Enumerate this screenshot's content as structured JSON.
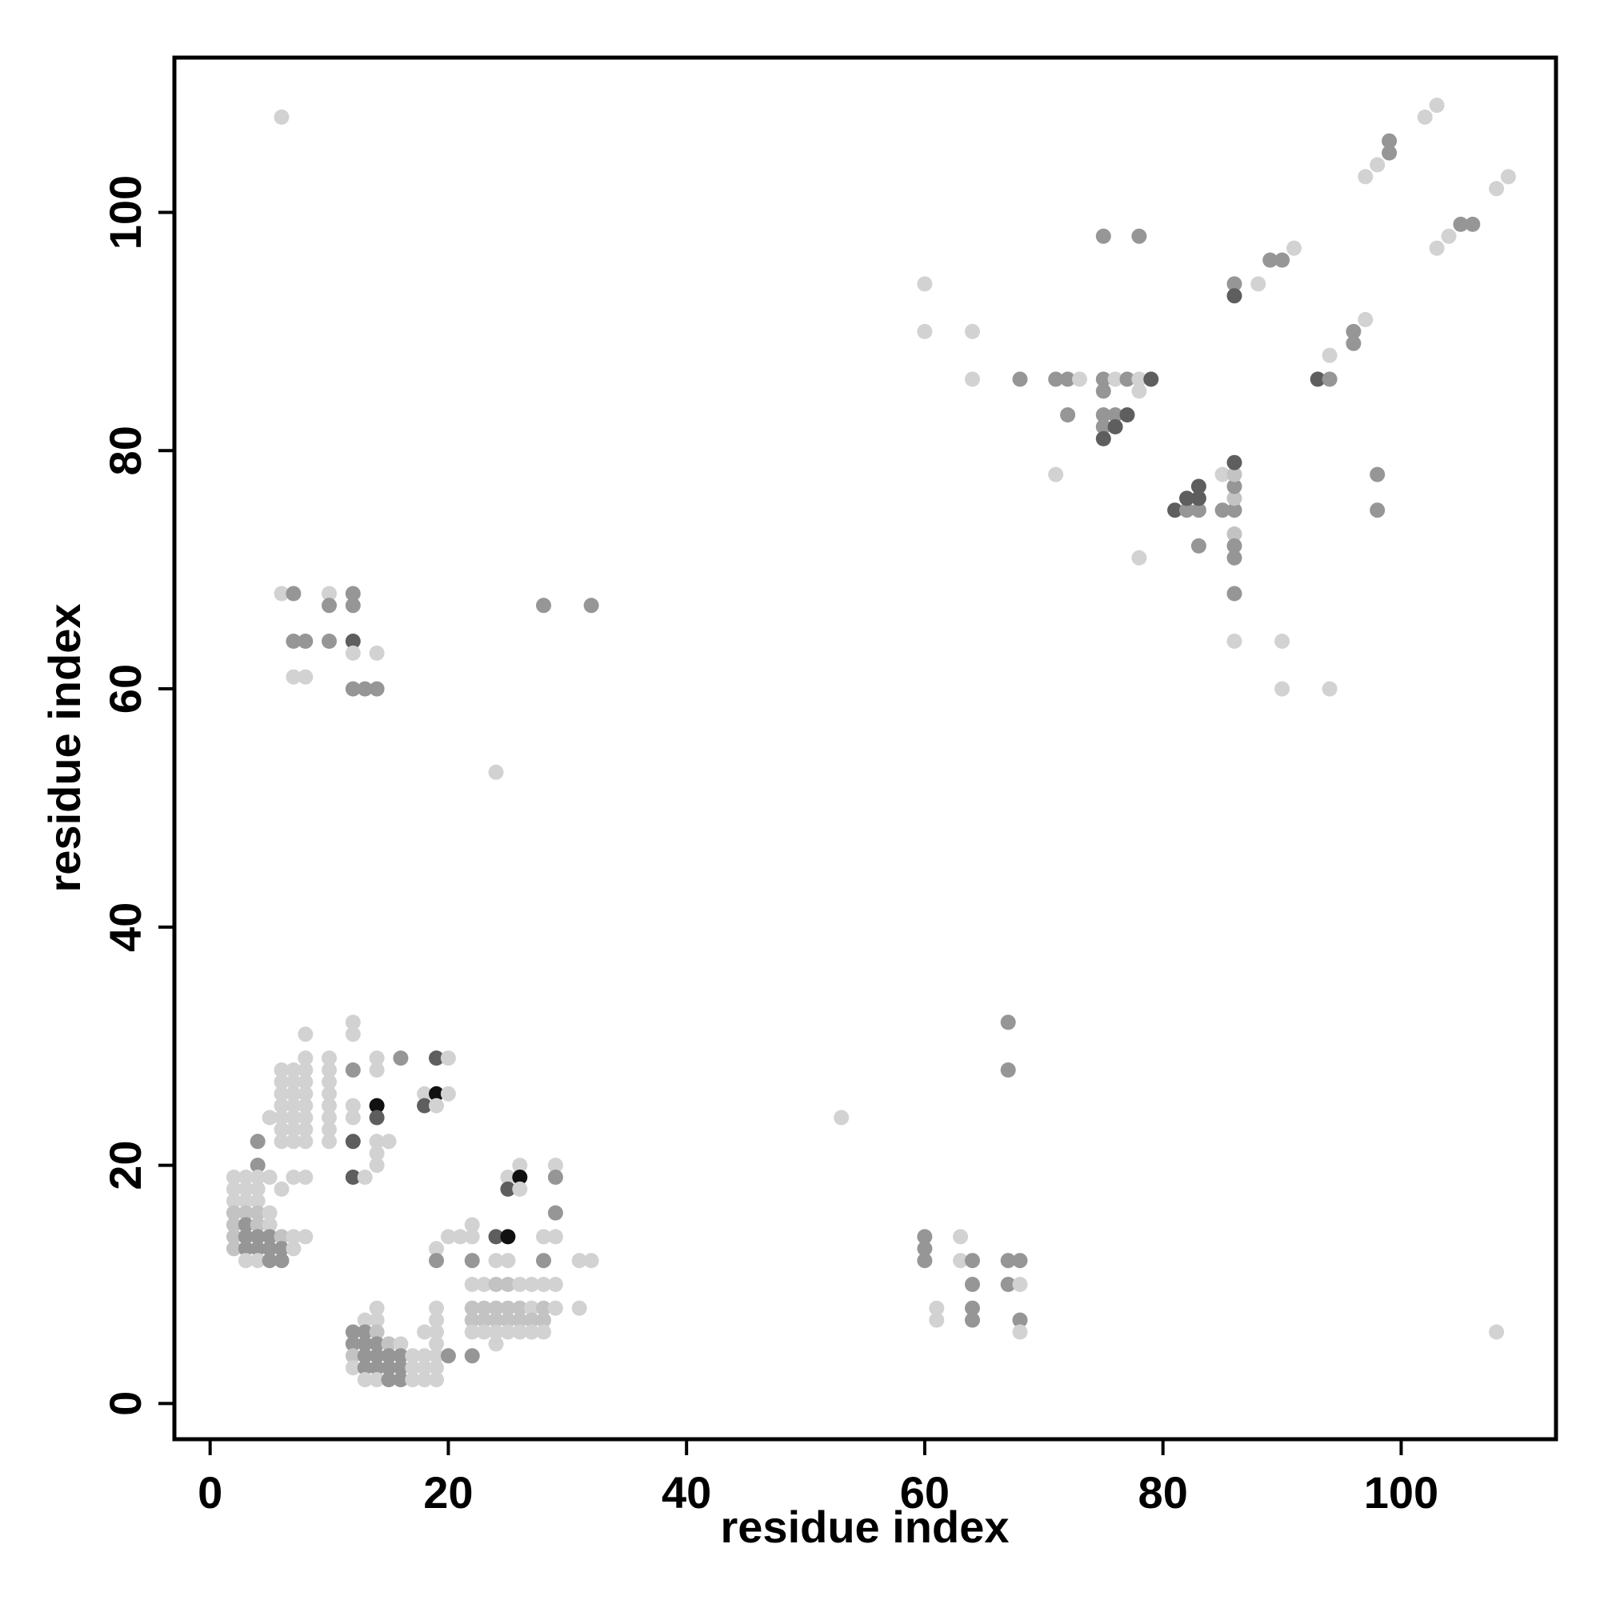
{
  "chart_data": {
    "type": "scatter",
    "xlabel": "residue index",
    "ylabel": "residue index",
    "xlim": [
      -3,
      113
    ],
    "ylim": [
      -3,
      113
    ],
    "xticks": [
      0,
      20,
      40,
      60,
      80,
      100
    ],
    "yticks": [
      0,
      20,
      40,
      60,
      80,
      100
    ],
    "grid": false,
    "shades": {
      "1": "#d2d2d2",
      "2": "#c3c3c3",
      "3": "#969696",
      "4": "#5e5e5e",
      "5": "#111111"
    },
    "points": [
      [
        6,
        108,
        1
      ],
      [
        6,
        68,
        1
      ],
      [
        7,
        68,
        3
      ],
      [
        10,
        68,
        1
      ],
      [
        12,
        68,
        3
      ],
      [
        10,
        67,
        3
      ],
      [
        12,
        67,
        3
      ],
      [
        28,
        67,
        3
      ],
      [
        32,
        67,
        3
      ],
      [
        7,
        64,
        3
      ],
      [
        8,
        64,
        3
      ],
      [
        10,
        64,
        3
      ],
      [
        12,
        64,
        4
      ],
      [
        12,
        63,
        1
      ],
      [
        14,
        63,
        1
      ],
      [
        7,
        61,
        1
      ],
      [
        8,
        61,
        1
      ],
      [
        12,
        60,
        3
      ],
      [
        13,
        60,
        3
      ],
      [
        14,
        60,
        3
      ],
      [
        24,
        53,
        1
      ],
      [
        12,
        32,
        1
      ],
      [
        12,
        31,
        1
      ],
      [
        8,
        31,
        1
      ],
      [
        8,
        29,
        1
      ],
      [
        10,
        29,
        1
      ],
      [
        14,
        29,
        1
      ],
      [
        16,
        29,
        3
      ],
      [
        19,
        29,
        4
      ],
      [
        20,
        29,
        1
      ],
      [
        6,
        28,
        1
      ],
      [
        7,
        28,
        1
      ],
      [
        8,
        28,
        1
      ],
      [
        10,
        28,
        1
      ],
      [
        12,
        28,
        3
      ],
      [
        14,
        28,
        1
      ],
      [
        6,
        27,
        1
      ],
      [
        7,
        27,
        1
      ],
      [
        8,
        27,
        1
      ],
      [
        10,
        27,
        1
      ],
      [
        6,
        26,
        1
      ],
      [
        7,
        26,
        1
      ],
      [
        8,
        26,
        1
      ],
      [
        10,
        26,
        1
      ],
      [
        18,
        26,
        1
      ],
      [
        19,
        26,
        5
      ],
      [
        20,
        26,
        1
      ],
      [
        6,
        25,
        1
      ],
      [
        7,
        25,
        1
      ],
      [
        8,
        25,
        1
      ],
      [
        10,
        25,
        1
      ],
      [
        12,
        25,
        1
      ],
      [
        14,
        25,
        5
      ],
      [
        18,
        25,
        4
      ],
      [
        19,
        25,
        1
      ],
      [
        5,
        24,
        1
      ],
      [
        6,
        24,
        1
      ],
      [
        7,
        24,
        1
      ],
      [
        8,
        24,
        1
      ],
      [
        10,
        24,
        1
      ],
      [
        12,
        24,
        1
      ],
      [
        14,
        24,
        4
      ],
      [
        6,
        23,
        1
      ],
      [
        7,
        23,
        1
      ],
      [
        8,
        23,
        1
      ],
      [
        10,
        23,
        1
      ],
      [
        4,
        22,
        3
      ],
      [
        6,
        22,
        1
      ],
      [
        7,
        22,
        1
      ],
      [
        8,
        22,
        1
      ],
      [
        10,
        22,
        1
      ],
      [
        12,
        22,
        4
      ],
      [
        14,
        22,
        1
      ],
      [
        15,
        22,
        1
      ],
      [
        14,
        21,
        1
      ],
      [
        4,
        20,
        3
      ],
      [
        14,
        20,
        1
      ],
      [
        26,
        20,
        1
      ],
      [
        29,
        20,
        1
      ],
      [
        2,
        19,
        1
      ],
      [
        3,
        19,
        1
      ],
      [
        4,
        19,
        1
      ],
      [
        5,
        19,
        1
      ],
      [
        7,
        19,
        1
      ],
      [
        8,
        19,
        1
      ],
      [
        12,
        19,
        4
      ],
      [
        13,
        19,
        1
      ],
      [
        25,
        19,
        1
      ],
      [
        26,
        19,
        5
      ],
      [
        29,
        19,
        3
      ],
      [
        2,
        18,
        1
      ],
      [
        3,
        18,
        1
      ],
      [
        4,
        18,
        1
      ],
      [
        6,
        18,
        1
      ],
      [
        25,
        18,
        4
      ],
      [
        26,
        18,
        1
      ],
      [
        2,
        17,
        1
      ],
      [
        3,
        17,
        1
      ],
      [
        4,
        17,
        1
      ],
      [
        2,
        16,
        2
      ],
      [
        3,
        16,
        2
      ],
      [
        4,
        16,
        2
      ],
      [
        5,
        16,
        1
      ],
      [
        29,
        16,
        3
      ],
      [
        2,
        15,
        2
      ],
      [
        3,
        15,
        3
      ],
      [
        4,
        15,
        2
      ],
      [
        5,
        15,
        1
      ],
      [
        2,
        14,
        2
      ],
      [
        3,
        14,
        3
      ],
      [
        4,
        14,
        3
      ],
      [
        5,
        14,
        3
      ],
      [
        6,
        14,
        2
      ],
      [
        7,
        14,
        1
      ],
      [
        8,
        14,
        1
      ],
      [
        20,
        14,
        1
      ],
      [
        21,
        14,
        1
      ],
      [
        22,
        14,
        1
      ],
      [
        24,
        14,
        4
      ],
      [
        25,
        14,
        5
      ],
      [
        28,
        14,
        1
      ],
      [
        29,
        14,
        1
      ],
      [
        2,
        13,
        2
      ],
      [
        3,
        13,
        3
      ],
      [
        4,
        13,
        3
      ],
      [
        5,
        13,
        3
      ],
      [
        6,
        13,
        3
      ],
      [
        7,
        13,
        1
      ],
      [
        19,
        13,
        1
      ],
      [
        3,
        12,
        1
      ],
      [
        4,
        12,
        1
      ],
      [
        5,
        12,
        3
      ],
      [
        6,
        12,
        3
      ],
      [
        19,
        12,
        3
      ],
      [
        22,
        12,
        3
      ],
      [
        24,
        12,
        1
      ],
      [
        25,
        12,
        1
      ],
      [
        28,
        12,
        3
      ],
      [
        31,
        12,
        1
      ],
      [
        32,
        12,
        1
      ],
      [
        22,
        15,
        1
      ],
      [
        22,
        10,
        1
      ],
      [
        23,
        10,
        1
      ],
      [
        24,
        10,
        2
      ],
      [
        25,
        10,
        2
      ],
      [
        26,
        10,
        1
      ],
      [
        27,
        10,
        1
      ],
      [
        28,
        10,
        1
      ],
      [
        29,
        10,
        1
      ],
      [
        14,
        8,
        1
      ],
      [
        19,
        8,
        1
      ],
      [
        22,
        8,
        2
      ],
      [
        23,
        8,
        2
      ],
      [
        24,
        8,
        2
      ],
      [
        25,
        8,
        2
      ],
      [
        26,
        8,
        2
      ],
      [
        27,
        8,
        1
      ],
      [
        28,
        8,
        2
      ],
      [
        29,
        8,
        1
      ],
      [
        31,
        8,
        1
      ],
      [
        13,
        7,
        1
      ],
      [
        14,
        7,
        1
      ],
      [
        19,
        7,
        1
      ],
      [
        22,
        7,
        2
      ],
      [
        23,
        7,
        2
      ],
      [
        24,
        7,
        2
      ],
      [
        25,
        7,
        2
      ],
      [
        26,
        7,
        2
      ],
      [
        27,
        7,
        2
      ],
      [
        28,
        7,
        2
      ],
      [
        12,
        6,
        3
      ],
      [
        13,
        6,
        3
      ],
      [
        14,
        6,
        2
      ],
      [
        18,
        6,
        1
      ],
      [
        19,
        6,
        1
      ],
      [
        22,
        6,
        1
      ],
      [
        23,
        6,
        1
      ],
      [
        24,
        6,
        1
      ],
      [
        25,
        6,
        1
      ],
      [
        26,
        6,
        1
      ],
      [
        27,
        6,
        1
      ],
      [
        28,
        6,
        1
      ],
      [
        12,
        5,
        3
      ],
      [
        13,
        5,
        3
      ],
      [
        14,
        5,
        3
      ],
      [
        15,
        5,
        2
      ],
      [
        16,
        5,
        1
      ],
      [
        19,
        5,
        1
      ],
      [
        24,
        5,
        1
      ],
      [
        12,
        4,
        2
      ],
      [
        13,
        4,
        3
      ],
      [
        14,
        4,
        3
      ],
      [
        15,
        4,
        3
      ],
      [
        16,
        4,
        3
      ],
      [
        17,
        4,
        1
      ],
      [
        18,
        4,
        1
      ],
      [
        19,
        4,
        1
      ],
      [
        20,
        4,
        3
      ],
      [
        22,
        4,
        3
      ],
      [
        12,
        3,
        1
      ],
      [
        13,
        3,
        3
      ],
      [
        14,
        3,
        3
      ],
      [
        15,
        3,
        3
      ],
      [
        16,
        3,
        3
      ],
      [
        17,
        3,
        1
      ],
      [
        18,
        3,
        1
      ],
      [
        19,
        3,
        1
      ],
      [
        13,
        2,
        1
      ],
      [
        14,
        2,
        1
      ],
      [
        15,
        2,
        3
      ],
      [
        16,
        2,
        3
      ],
      [
        17,
        2,
        1
      ],
      [
        18,
        2,
        1
      ],
      [
        19,
        2,
        1
      ],
      [
        60,
        94,
        1
      ],
      [
        60,
        90,
        1
      ],
      [
        64,
        90,
        1
      ],
      [
        64,
        86,
        1
      ],
      [
        68,
        86,
        3
      ],
      [
        71,
        86,
        3
      ],
      [
        72,
        86,
        3
      ],
      [
        73,
        86,
        1
      ],
      [
        75,
        86,
        3
      ],
      [
        76,
        86,
        1
      ],
      [
        77,
        86,
        3
      ],
      [
        78,
        86,
        1
      ],
      [
        79,
        86,
        4
      ],
      [
        75,
        85,
        3
      ],
      [
        78,
        85,
        1
      ],
      [
        72,
        83,
        3
      ],
      [
        75,
        83,
        3
      ],
      [
        76,
        83,
        3
      ],
      [
        77,
        83,
        4
      ],
      [
        75,
        82,
        3
      ],
      [
        76,
        82,
        4
      ],
      [
        75,
        81,
        4
      ],
      [
        75,
        98,
        3
      ],
      [
        78,
        98,
        3
      ],
      [
        71,
        78,
        1
      ],
      [
        78,
        71,
        1
      ],
      [
        81,
        75,
        4
      ],
      [
        82,
        75,
        3
      ],
      [
        83,
        75,
        3
      ],
      [
        85,
        75,
        3
      ],
      [
        86,
        75,
        3
      ],
      [
        82,
        76,
        4
      ],
      [
        83,
        76,
        4
      ],
      [
        86,
        76,
        2
      ],
      [
        83,
        77,
        4
      ],
      [
        86,
        77,
        3
      ],
      [
        85,
        78,
        1
      ],
      [
        86,
        78,
        2
      ],
      [
        86,
        79,
        4
      ],
      [
        86,
        73,
        2
      ],
      [
        86,
        72,
        3
      ],
      [
        86,
        71,
        3
      ],
      [
        83,
        72,
        3
      ],
      [
        86,
        68,
        3
      ],
      [
        86,
        64,
        1
      ],
      [
        86,
        94,
        3
      ],
      [
        86,
        93,
        4
      ],
      [
        88,
        94,
        1
      ],
      [
        89,
        96,
        3
      ],
      [
        90,
        96,
        3
      ],
      [
        91,
        97,
        1
      ],
      [
        90,
        64,
        1
      ],
      [
        90,
        60,
        1
      ],
      [
        94,
        60,
        1
      ],
      [
        93,
        86,
        4
      ],
      [
        94,
        86,
        3
      ],
      [
        94,
        88,
        1
      ],
      [
        96,
        90,
        3
      ],
      [
        96,
        89,
        3
      ],
      [
        97,
        91,
        1
      ],
      [
        98,
        78,
        3
      ],
      [
        98,
        75,
        3
      ],
      [
        97,
        103,
        1
      ],
      [
        98,
        104,
        1
      ],
      [
        99,
        106,
        3
      ],
      [
        99,
        105,
        3
      ],
      [
        102,
        108,
        1
      ],
      [
        103,
        109,
        1
      ],
      [
        103,
        97,
        1
      ],
      [
        104,
        98,
        1
      ],
      [
        105,
        99,
        3
      ],
      [
        106,
        99,
        3
      ],
      [
        108,
        102,
        1
      ],
      [
        109,
        103,
        1
      ],
      [
        53,
        24,
        1
      ],
      [
        67,
        32,
        3
      ],
      [
        67,
        28,
        3
      ],
      [
        60,
        14,
        3
      ],
      [
        60,
        13,
        3
      ],
      [
        60,
        12,
        3
      ],
      [
        63,
        14,
        1
      ],
      [
        63,
        12,
        1
      ],
      [
        64,
        12,
        3
      ],
      [
        64,
        10,
        3
      ],
      [
        61,
        8,
        1
      ],
      [
        61,
        7,
        1
      ],
      [
        64,
        8,
        3
      ],
      [
        64,
        7,
        3
      ],
      [
        67,
        12,
        3
      ],
      [
        68,
        12,
        3
      ],
      [
        67,
        10,
        3
      ],
      [
        68,
        10,
        1
      ],
      [
        68,
        7,
        3
      ],
      [
        68,
        6,
        1
      ],
      [
        108,
        6,
        1
      ]
    ]
  }
}
